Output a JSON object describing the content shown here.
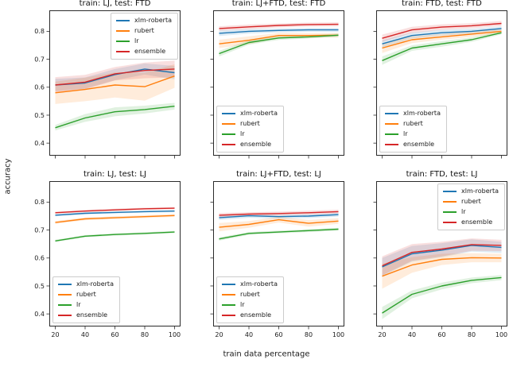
{
  "figure": {
    "ylabel": "accuracy",
    "xlabel": "train data percentage"
  },
  "palette": {
    "xlm-roberta": "#1f77b4",
    "rubert": "#ff7f0e",
    "lr": "#2ca02c",
    "ensemble": "#d62728"
  },
  "chart_data": [
    {
      "type": "line",
      "title": "train: LJ, test: FTD",
      "x": [
        20,
        40,
        60,
        80,
        100
      ],
      "xticks": [
        20,
        40,
        60,
        80,
        100
      ],
      "yticks": [
        0.4,
        0.5,
        0.6,
        0.7,
        0.8
      ],
      "xlim": [
        16,
        104
      ],
      "ylim": [
        0.355,
        0.875
      ],
      "grid": false,
      "legend_position": "upper-right",
      "show_x_labels": false,
      "show_y_labels": true,
      "series": [
        {
          "name": "xlm-roberta",
          "color": "#1f77b4",
          "values": [
            0.608,
            0.615,
            0.645,
            0.665,
            0.652
          ],
          "band": [
            0.022,
            0.02,
            0.02,
            0.02,
            0.024
          ]
        },
        {
          "name": "rubert",
          "color": "#ff7f0e",
          "values": [
            0.58,
            0.592,
            0.608,
            0.602,
            0.64
          ],
          "band": [
            0.04,
            0.042,
            0.045,
            0.05,
            0.042
          ]
        },
        {
          "name": "lr",
          "color": "#2ca02c",
          "values": [
            0.455,
            0.49,
            0.512,
            0.52,
            0.532
          ],
          "band": [
            0.01,
            0.014,
            0.016,
            0.014,
            0.012
          ]
        },
        {
          "name": "ensemble",
          "color": "#d62728",
          "values": [
            0.608,
            0.618,
            0.648,
            0.66,
            0.665
          ],
          "band": [
            0.028,
            0.026,
            0.024,
            0.028,
            0.03
          ]
        }
      ]
    },
    {
      "type": "line",
      "title": "train: LJ+FTD, test: FTD",
      "x": [
        20,
        40,
        60,
        80,
        100
      ],
      "xticks": [
        20,
        40,
        60,
        80,
        100
      ],
      "yticks": [
        0.4,
        0.5,
        0.6,
        0.7,
        0.8
      ],
      "xlim": [
        16,
        104
      ],
      "ylim": [
        0.355,
        0.875
      ],
      "grid": false,
      "legend_position": "lower-left",
      "show_x_labels": false,
      "show_y_labels": false,
      "series": [
        {
          "name": "xlm-roberta",
          "color": "#1f77b4",
          "values": [
            0.793,
            0.8,
            0.803,
            0.805,
            0.805
          ],
          "band": [
            0.01,
            0.008,
            0.007,
            0.007,
            0.007
          ]
        },
        {
          "name": "rubert",
          "color": "#ff7f0e",
          "values": [
            0.755,
            0.768,
            0.785,
            0.785,
            0.786
          ],
          "band": [
            0.015,
            0.014,
            0.009,
            0.008,
            0.008
          ]
        },
        {
          "name": "lr",
          "color": "#2ca02c",
          "values": [
            0.72,
            0.76,
            0.776,
            0.78,
            0.786
          ],
          "band": [
            0.01,
            0.008,
            0.007,
            0.006,
            0.006
          ]
        },
        {
          "name": "ensemble",
          "color": "#d62728",
          "values": [
            0.81,
            0.816,
            0.821,
            0.824,
            0.825
          ],
          "band": [
            0.008,
            0.008,
            0.007,
            0.007,
            0.007
          ]
        }
      ]
    },
    {
      "type": "line",
      "title": "train: FTD, test: FTD",
      "x": [
        20,
        40,
        60,
        80,
        100
      ],
      "xticks": [
        20,
        40,
        60,
        80,
        100
      ],
      "yticks": [
        0.4,
        0.5,
        0.6,
        0.7,
        0.8
      ],
      "xlim": [
        16,
        104
      ],
      "ylim": [
        0.355,
        0.875
      ],
      "grid": false,
      "legend_position": "lower-left",
      "show_x_labels": false,
      "show_y_labels": false,
      "series": [
        {
          "name": "xlm-roberta",
          "color": "#1f77b4",
          "values": [
            0.755,
            0.785,
            0.795,
            0.8,
            0.81
          ],
          "band": [
            0.013,
            0.011,
            0.01,
            0.009,
            0.008
          ]
        },
        {
          "name": "rubert",
          "color": "#ff7f0e",
          "values": [
            0.74,
            0.77,
            0.78,
            0.79,
            0.8
          ],
          "band": [
            0.018,
            0.012,
            0.01,
            0.01,
            0.008
          ]
        },
        {
          "name": "lr",
          "color": "#2ca02c",
          "values": [
            0.695,
            0.74,
            0.755,
            0.77,
            0.795
          ],
          "band": [
            0.015,
            0.01,
            0.01,
            0.008,
            0.006
          ]
        },
        {
          "name": "ensemble",
          "color": "#d62728",
          "values": [
            0.775,
            0.805,
            0.815,
            0.82,
            0.828
          ],
          "band": [
            0.013,
            0.011,
            0.01,
            0.009,
            0.009
          ]
        }
      ]
    },
    {
      "type": "line",
      "title": "train: LJ, test: LJ",
      "x": [
        20,
        40,
        60,
        80,
        100
      ],
      "xticks": [
        20,
        40,
        60,
        80,
        100
      ],
      "yticks": [
        0.4,
        0.5,
        0.6,
        0.7,
        0.8
      ],
      "xlim": [
        16,
        104
      ],
      "ylim": [
        0.355,
        0.875
      ],
      "grid": false,
      "legend_position": "lower-left",
      "show_x_labels": true,
      "show_y_labels": true,
      "series": [
        {
          "name": "xlm-roberta",
          "color": "#1f77b4",
          "values": [
            0.753,
            0.76,
            0.763,
            0.766,
            0.768
          ],
          "band": [
            0.004,
            0.004,
            0.004,
            0.004,
            0.004
          ]
        },
        {
          "name": "rubert",
          "color": "#ff7f0e",
          "values": [
            0.727,
            0.74,
            0.744,
            0.748,
            0.752
          ],
          "band": [
            0.005,
            0.005,
            0.005,
            0.005,
            0.005
          ]
        },
        {
          "name": "lr",
          "color": "#2ca02c",
          "values": [
            0.661,
            0.678,
            0.684,
            0.688,
            0.693
          ],
          "band": [
            0.004,
            0.004,
            0.004,
            0.004,
            0.004
          ]
        },
        {
          "name": "ensemble",
          "color": "#d62728",
          "values": [
            0.762,
            0.768,
            0.772,
            0.776,
            0.778
          ],
          "band": [
            0.004,
            0.004,
            0.004,
            0.004,
            0.004
          ]
        }
      ]
    },
    {
      "type": "line",
      "title": "train: LJ+FTD, test: LJ",
      "x": [
        20,
        40,
        60,
        80,
        100
      ],
      "xticks": [
        20,
        40,
        60,
        80,
        100
      ],
      "yticks": [
        0.4,
        0.5,
        0.6,
        0.7,
        0.8
      ],
      "xlim": [
        16,
        104
      ],
      "ylim": [
        0.355,
        0.875
      ],
      "grid": false,
      "legend_position": "lower-left",
      "show_x_labels": true,
      "show_y_labels": false,
      "series": [
        {
          "name": "xlm-roberta",
          "color": "#1f77b4",
          "values": [
            0.744,
            0.751,
            0.748,
            0.75,
            0.755
          ],
          "band": [
            0.008,
            0.007,
            0.007,
            0.007,
            0.007
          ]
        },
        {
          "name": "rubert",
          "color": "#ff7f0e",
          "values": [
            0.71,
            0.72,
            0.737,
            0.724,
            0.732
          ],
          "band": [
            0.015,
            0.012,
            0.01,
            0.012,
            0.01
          ]
        },
        {
          "name": "lr",
          "color": "#2ca02c",
          "values": [
            0.668,
            0.688,
            0.693,
            0.698,
            0.703
          ],
          "band": [
            0.006,
            0.005,
            0.005,
            0.005,
            0.005
          ]
        },
        {
          "name": "ensemble",
          "color": "#d62728",
          "values": [
            0.753,
            0.757,
            0.759,
            0.762,
            0.766
          ],
          "band": [
            0.008,
            0.007,
            0.007,
            0.007,
            0.007
          ]
        }
      ]
    },
    {
      "type": "line",
      "title": "train: FTD, test: LJ",
      "x": [
        20,
        40,
        60,
        80,
        100
      ],
      "xticks": [
        20,
        40,
        60,
        80,
        100
      ],
      "yticks": [
        0.4,
        0.5,
        0.6,
        0.7,
        0.8
      ],
      "xlim": [
        16,
        104
      ],
      "ylim": [
        0.355,
        0.875
      ],
      "grid": false,
      "legend_position": "upper-right",
      "show_x_labels": true,
      "show_y_labels": false,
      "series": [
        {
          "name": "xlm-roberta",
          "color": "#1f77b4",
          "values": [
            0.568,
            0.615,
            0.628,
            0.645,
            0.638
          ],
          "band": [
            0.032,
            0.028,
            0.025,
            0.022,
            0.02
          ]
        },
        {
          "name": "rubert",
          "color": "#ff7f0e",
          "values": [
            0.535,
            0.575,
            0.595,
            0.601,
            0.6
          ],
          "band": [
            0.045,
            0.028,
            0.02,
            0.016,
            0.015
          ]
        },
        {
          "name": "lr",
          "color": "#2ca02c",
          "values": [
            0.403,
            0.47,
            0.5,
            0.52,
            0.53
          ],
          "band": [
            0.022,
            0.014,
            0.012,
            0.01,
            0.009
          ]
        },
        {
          "name": "ensemble",
          "color": "#d62728",
          "values": [
            0.572,
            0.62,
            0.632,
            0.648,
            0.645
          ],
          "band": [
            0.034,
            0.03,
            0.026,
            0.022,
            0.02
          ]
        }
      ]
    }
  ]
}
